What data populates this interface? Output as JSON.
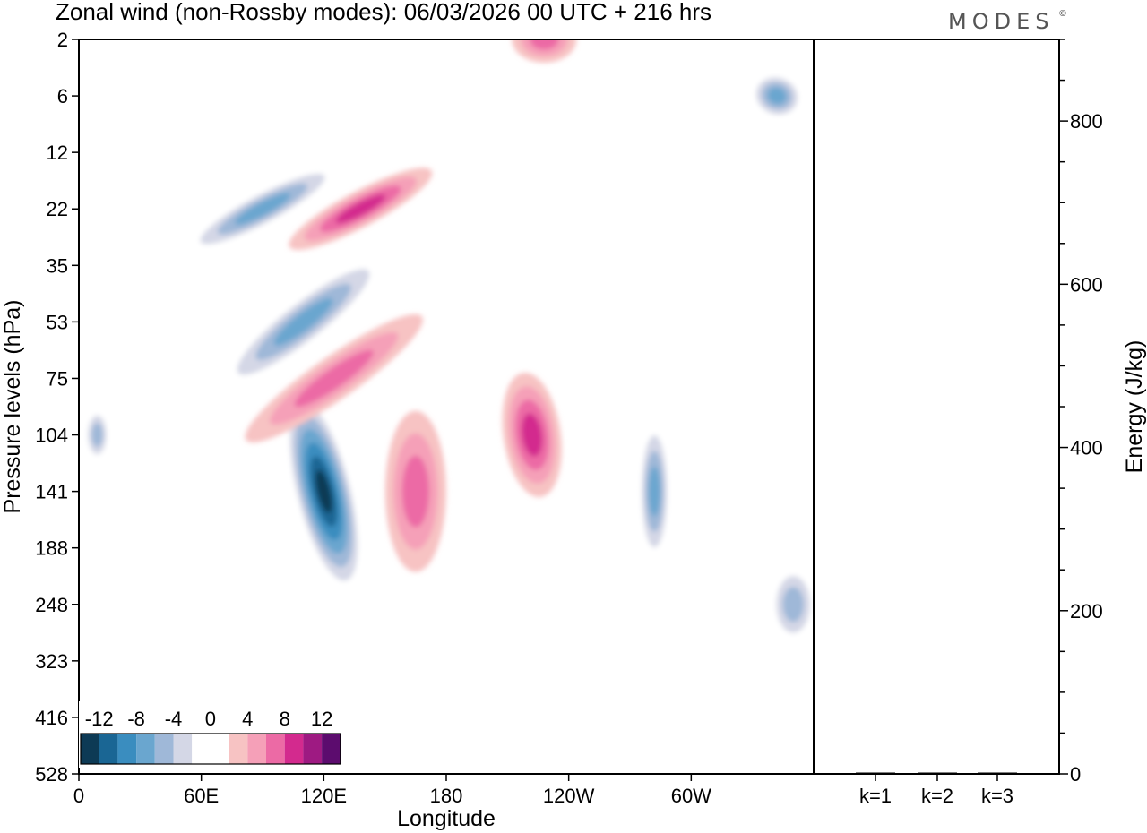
{
  "title": "Zonal wind (non-Rossby modes):  06/03/2026  00 UTC  + 216 hrs",
  "brand": "MODES",
  "brand_mark": "©",
  "chart_data": [
    {
      "type": "heatmap",
      "variable": "Zonal wind (non-Rossby modes)",
      "date": "06/03/2026",
      "time": "00 UTC",
      "lead": "+ 216 hrs",
      "xlabel": "Longitude",
      "ylabel": "Pressure levels (hPa)",
      "x_ticks": [
        "0",
        "60E",
        "120E",
        "180",
        "120W",
        "60W"
      ],
      "x_tick_values": [
        0,
        60,
        120,
        180,
        240,
        300
      ],
      "xlim": [
        0,
        360
      ],
      "y_ticks": [
        "2",
        "6",
        "12",
        "22",
        "35",
        "53",
        "75",
        "104",
        "141",
        "188",
        "248",
        "323",
        "416",
        "528"
      ],
      "grid": false,
      "colorbar": {
        "placement": "bottom-left inset",
        "labels": [
          "-12",
          "-8",
          "-4",
          "0",
          "4",
          "8",
          "12"
        ],
        "colors": [
          "#0d3a55",
          "#1a6694",
          "#3a8dbf",
          "#6aa6cf",
          "#9fb8d8",
          "#d4d7e6",
          "#ffffff",
          "#ffffff",
          "#f7c3c3",
          "#f5a0b8",
          "#ec6aa5",
          "#d32a8e",
          "#9e1a82",
          "#5c0c6e"
        ]
      },
      "features": [
        {
          "lon": 120,
          "level": "141",
          "value": -14
        },
        {
          "lon": 110,
          "level": "53",
          "value": -8
        },
        {
          "lon": 90,
          "level": "22",
          "value": -8
        },
        {
          "lon": 138,
          "level": "22",
          "value": 8
        },
        {
          "lon": 125,
          "level": "75",
          "value": 6
        },
        {
          "lon": 165,
          "level": "141",
          "value": 6
        },
        {
          "lon": 222,
          "level": "104",
          "value": 8
        },
        {
          "lon": 282,
          "level": "141",
          "value": -8
        },
        {
          "lon": 342,
          "level": "6",
          "value": -8
        },
        {
          "lon": 228,
          "level": "2",
          "value": 6
        },
        {
          "lon": 9,
          "level": "104",
          "value": -6
        },
        {
          "lon": 350,
          "level": "248",
          "value": -6
        }
      ]
    },
    {
      "type": "bar",
      "categories": [
        "k=1",
        "k=2",
        "k=3"
      ],
      "values": [
        1.5,
        1.5,
        1.5
      ],
      "ylabel": "Energy (J/kg)",
      "ylim": [
        0,
        900
      ],
      "y_ticks": [
        0,
        200,
        400,
        600,
        800
      ]
    }
  ]
}
